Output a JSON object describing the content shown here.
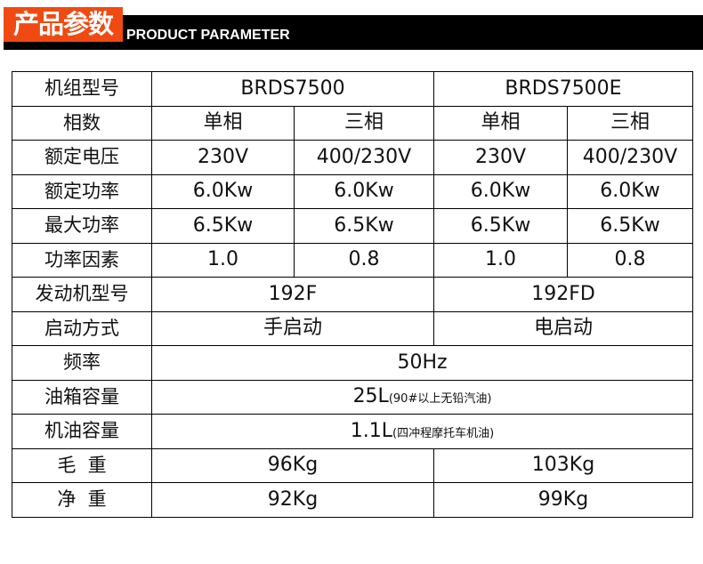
{
  "header": {
    "title_cn": "产品参数",
    "title_en": "PRODUCT PARAMETER",
    "accent": "#f04a12"
  },
  "models": [
    "BRDS7500",
    "BRDS7500E"
  ],
  "rows": {
    "phase": {
      "label": "相数",
      "values": [
        "单相",
        "三相",
        "单相",
        "三相"
      ]
    },
    "voltage": {
      "label": "额定电压",
      "values": [
        "230V",
        "400/230V",
        "230V",
        "400/230V"
      ]
    },
    "rated_power": {
      "label": "额定功率",
      "values": [
        "6.0Kw",
        "6.0Kw",
        "6.0Kw",
        "6.0Kw"
      ]
    },
    "max_power": {
      "label": "最大功率",
      "values": [
        "6.5Kw",
        "6.5Kw",
        "6.5Kw",
        "6.5Kw"
      ]
    },
    "power_factor": {
      "label": "功率因素",
      "values": [
        "1.0",
        "0.8",
        "1.0",
        "0.8"
      ]
    },
    "engine": {
      "label": "发动机型号",
      "values": [
        "192F",
        "192FD"
      ]
    },
    "start": {
      "label": "启动方式",
      "values": [
        "手启动",
        "电启动"
      ]
    },
    "frequency": {
      "label": "频率",
      "value": "50Hz"
    },
    "fuel_tank": {
      "label": "油箱容量",
      "value": "25L",
      "note": "(90#以上无铅汽油)"
    },
    "oil": {
      "label": "机油容量",
      "value": "1.1L",
      "note": "(四冲程摩托车机油)"
    },
    "gross_weight": {
      "label": "毛  重",
      "values": [
        "96Kg",
        "103Kg"
      ]
    },
    "net_weight": {
      "label": "净  重",
      "values": [
        "92Kg",
        "99Kg"
      ]
    }
  },
  "model_label": "机组型号"
}
